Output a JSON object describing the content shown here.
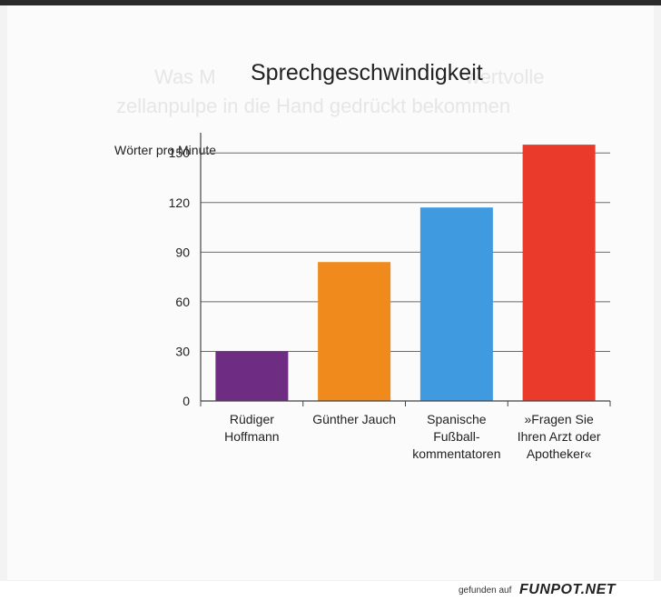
{
  "chart_data": {
    "type": "bar",
    "title": "Sprechgeschwindigkeit",
    "ylabel": "Wörter pro Minute",
    "xlabel": "",
    "ylim": [
      0,
      160
    ],
    "yticks": [
      0,
      30,
      60,
      90,
      120,
      150
    ],
    "grid": true,
    "categories": [
      [
        "Rüdiger",
        "Hoffmann"
      ],
      [
        "Günther Jauch"
      ],
      [
        "Spanische",
        "Fußball-",
        "kommentatoren"
      ],
      [
        "»Fragen Sie",
        "Ihren Arzt oder",
        "Apotheker«"
      ]
    ],
    "values": [
      30,
      84,
      117,
      155
    ],
    "colors": [
      "#6e2d82",
      "#f08a1c",
      "#3f9ae0",
      "#ea3a2c"
    ]
  },
  "footer": {
    "prefix": "gefunden auf",
    "brand": "FUNPOT.NET"
  }
}
